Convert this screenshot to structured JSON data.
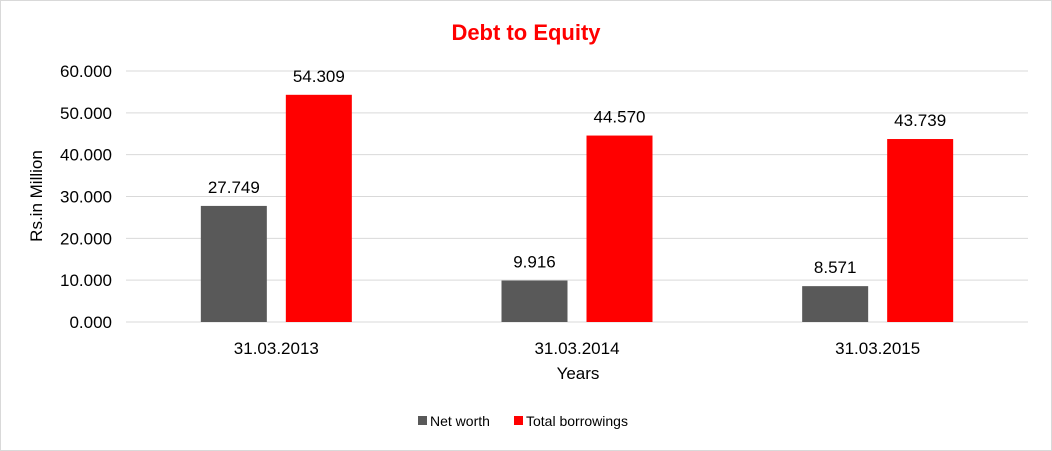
{
  "chart_data": {
    "type": "bar",
    "title": "Debt to Equity",
    "xlabel": "Years",
    "ylabel": "Rs.in Million",
    "categories": [
      "31.03.2013",
      "31.03.2014",
      "31.03.2015"
    ],
    "series": [
      {
        "name": "Net worth",
        "values": [
          27.749,
          9.916,
          8.571
        ],
        "labels": [
          "27.749",
          "9.916",
          "8.571"
        ],
        "color": "#595959"
      },
      {
        "name": "Total borrowings",
        "values": [
          54.309,
          44.57,
          43.739
        ],
        "labels": [
          "54.309",
          "44.570",
          "43.739"
        ],
        "color": "#ff0000"
      }
    ],
    "ylim": [
      0,
      60
    ],
    "yticks": [
      0,
      10,
      20,
      30,
      40,
      50,
      60
    ],
    "ytick_labels": [
      "0.000",
      "10.000",
      "20.000",
      "30.000",
      "40.000",
      "50.000",
      "60.000"
    ],
    "grid": true,
    "legend_position": "bottom",
    "title_color": "#ff0000"
  }
}
